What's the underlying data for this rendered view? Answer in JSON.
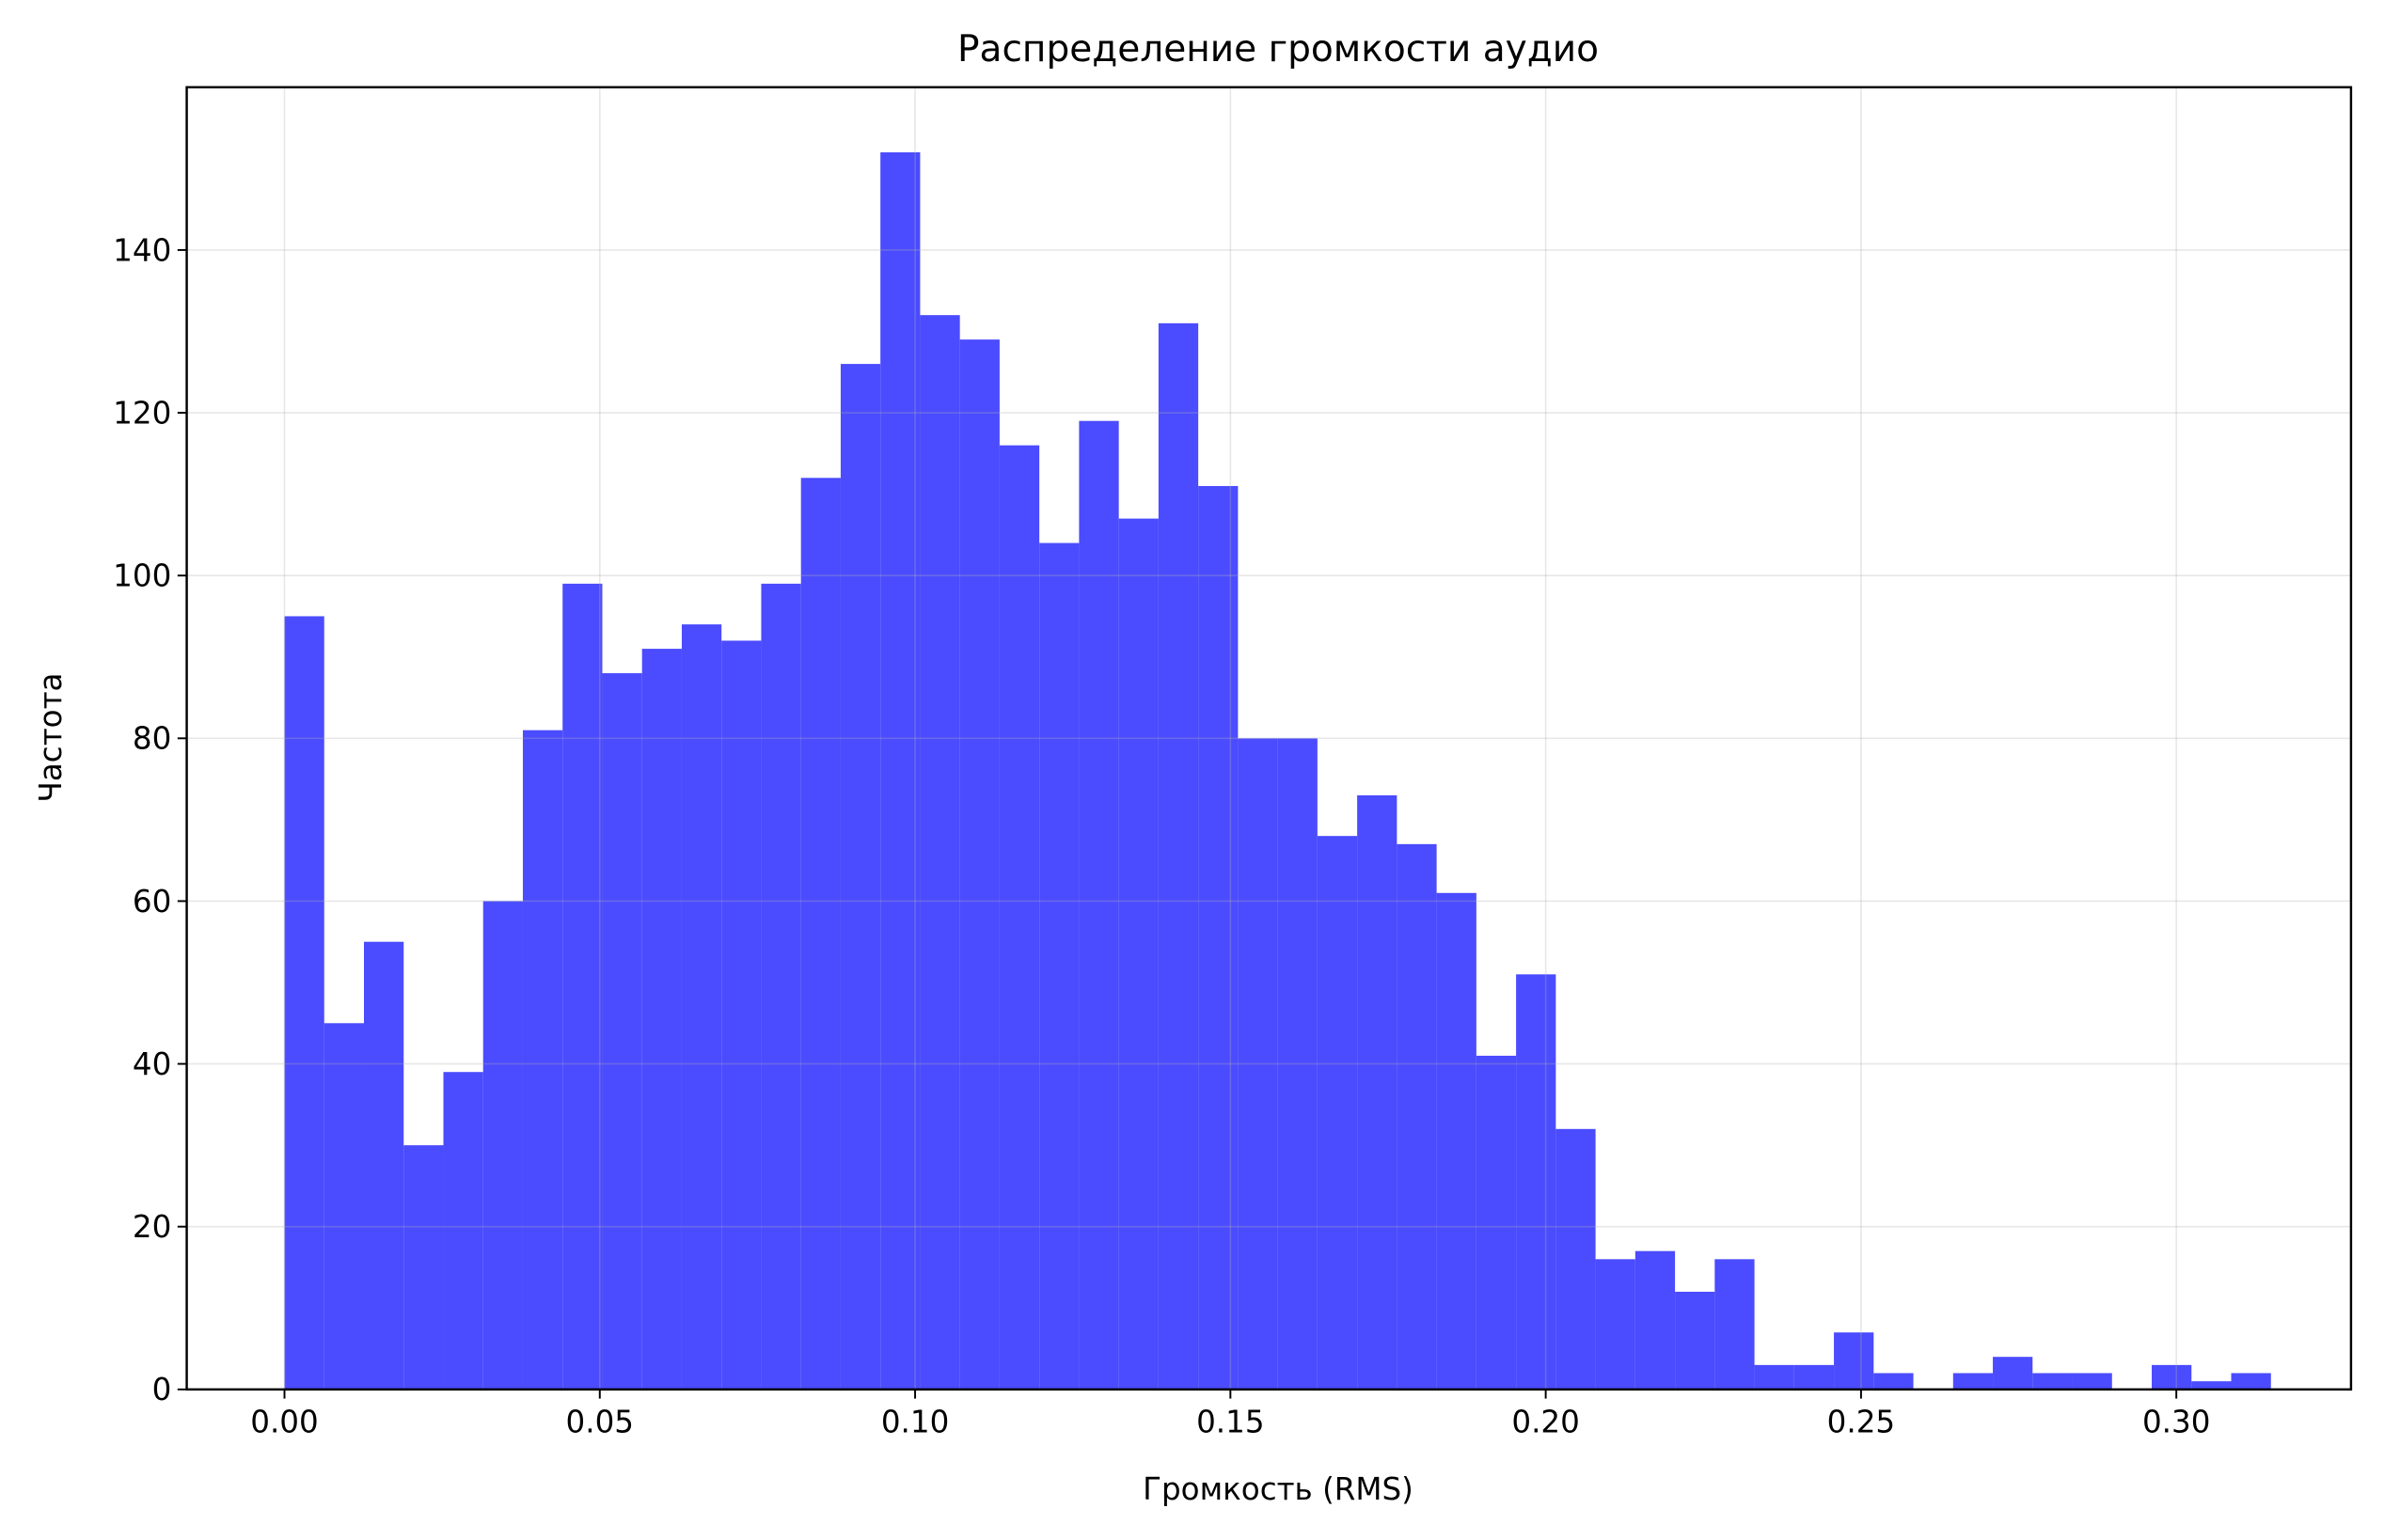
{
  "chart_data": {
    "type": "histogram",
    "title": "Распределение громкости аудио",
    "x_label": "Громкость (RMS)",
    "y_label": "Частота",
    "bins": [
      0,
      0.0063,
      0.0126,
      0.0189,
      0.0252,
      0.0315,
      0.0378,
      0.0441,
      0.0504,
      0.0567,
      0.063,
      0.0693,
      0.0756,
      0.0819,
      0.0882,
      0.0945,
      0.1008,
      0.1071,
      0.1134,
      0.1197,
      0.126,
      0.1323,
      0.1386,
      0.1449,
      0.1512,
      0.1575,
      0.1638,
      0.1701,
      0.1764,
      0.1827,
      0.189,
      0.1953,
      0.2016,
      0.2079,
      0.2142,
      0.2205,
      0.2268,
      0.2331,
      0.2394,
      0.2457,
      0.252,
      0.2583,
      0.2646,
      0.2709,
      0.2772,
      0.2835,
      0.2898,
      0.2961,
      0.3024,
      0.3087,
      0.315
    ],
    "values": [
      95,
      45,
      55,
      30,
      39,
      60,
      81,
      99,
      88,
      91,
      94,
      92,
      99,
      112,
      126,
      152,
      132,
      129,
      116,
      104,
      119,
      107,
      131,
      111,
      80,
      80,
      68,
      73,
      67,
      61,
      41,
      51,
      32,
      16,
      17,
      12,
      16,
      3,
      3,
      7,
      2,
      0,
      2,
      4,
      2,
      2,
      0,
      3,
      1,
      2
    ],
    "color": "#4b4bff",
    "xlim": [
      -0.0155,
      0.3277
    ],
    "xticks": [
      {
        "value": 0,
        "label": "0.00"
      },
      {
        "value": 0.05,
        "label": "0.05"
      },
      {
        "value": 0.1,
        "label": "0.10"
      },
      {
        "value": 0.15,
        "label": "0.15"
      },
      {
        "value": 0.2,
        "label": "0.20"
      },
      {
        "value": 0.25,
        "label": "0.25"
      },
      {
        "value": 0.3,
        "label": "0.30"
      }
    ],
    "ylim": [
      0,
      160
    ],
    "yticks": [
      0,
      20,
      40,
      60,
      80,
      100,
      120,
      140
    ],
    "grid": true
  }
}
